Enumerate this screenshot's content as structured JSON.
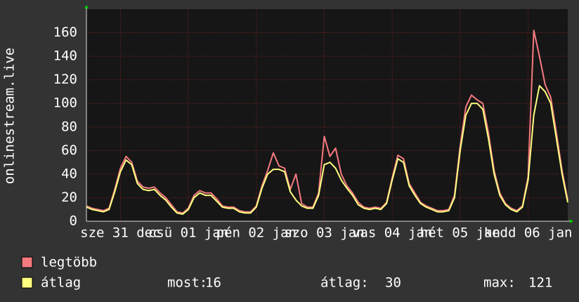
{
  "chart_data": {
    "type": "line",
    "y_label": "onlinestream.live",
    "x": [
      0,
      2,
      4,
      6,
      8,
      10,
      12,
      14,
      16,
      18,
      20,
      22,
      24,
      26,
      28,
      30,
      32,
      34,
      36,
      38,
      40,
      42,
      44,
      46,
      48,
      50,
      52,
      54,
      56,
      58,
      60,
      62,
      64,
      66,
      68,
      70,
      72,
      74,
      76,
      78,
      80,
      82,
      84,
      86,
      88,
      90,
      92,
      94,
      96,
      98,
      100,
      102,
      104,
      106,
      108,
      110,
      112,
      114,
      116,
      118,
      120,
      122,
      124,
      126,
      128,
      130,
      132,
      134,
      136,
      138,
      140,
      142,
      144,
      146,
      148,
      150,
      152,
      154,
      156,
      158,
      160,
      162,
      164,
      166,
      168,
      170
    ],
    "series": [
      {
        "name": "legtöbb",
        "color": "#f47a80",
        "values": [
          13,
          11,
          10,
          9,
          11,
          27,
          45,
          55,
          50,
          34,
          29,
          28,
          29,
          24,
          20,
          14,
          8,
          7,
          11,
          22,
          26,
          24,
          24,
          19,
          13,
          12,
          12,
          9,
          8,
          8,
          13,
          30,
          43,
          58,
          47,
          45,
          27,
          40,
          15,
          12,
          12,
          24,
          72,
          55,
          62,
          40,
          30,
          24,
          16,
          12,
          11,
          12,
          11,
          16,
          37,
          56,
          53,
          32,
          24,
          16,
          13,
          11,
          9,
          9,
          10,
          22,
          64,
          97,
          107,
          103,
          100,
          75,
          43,
          24,
          15,
          11,
          9,
          13,
          38,
          162,
          140,
          116,
          105,
          75,
          43,
          18
        ]
      },
      {
        "name": "átlag",
        "color": "#ffff80",
        "values": [
          12,
          10,
          9,
          8,
          10,
          25,
          42,
          52,
          48,
          32,
          27,
          26,
          27,
          22,
          18,
          12,
          7,
          6,
          10,
          20,
          24,
          22,
          22,
          17,
          12,
          11,
          11,
          8,
          7,
          7,
          12,
          28,
          40,
          44,
          44,
          42,
          25,
          18,
          13,
          11,
          11,
          22,
          48,
          50,
          45,
          35,
          28,
          22,
          14,
          11,
          10,
          11,
          10,
          15,
          35,
          53,
          50,
          30,
          22,
          15,
          12,
          10,
          8,
          8,
          9,
          20,
          60,
          90,
          100,
          100,
          95,
          70,
          40,
          22,
          14,
          10,
          8,
          12,
          35,
          90,
          115,
          110,
          100,
          70,
          40,
          16
        ]
      }
    ],
    "xlim": [
      0,
      170
    ],
    "xticks": [
      {
        "value": 12,
        "label": "sze 31 dec"
      },
      {
        "value": 36,
        "label": "csü 01 jan"
      },
      {
        "value": 60,
        "label": "pén 02 jan"
      },
      {
        "value": 84,
        "label": "szo 03 jan"
      },
      {
        "value": 108,
        "label": "vas 04 jan"
      },
      {
        "value": 132,
        "label": "hét 05 jan"
      },
      {
        "value": 156,
        "label": "kedd 06 jan"
      }
    ],
    "ylim": [
      0,
      180
    ],
    "yticks": [
      0,
      20,
      40,
      60,
      80,
      100,
      120,
      140,
      160
    ],
    "grid": true,
    "stats": [
      {
        "label": "most:",
        "value": 16
      },
      {
        "label": "átlag:",
        "value": 30
      },
      {
        "label": "max:",
        "value": 121
      }
    ]
  }
}
